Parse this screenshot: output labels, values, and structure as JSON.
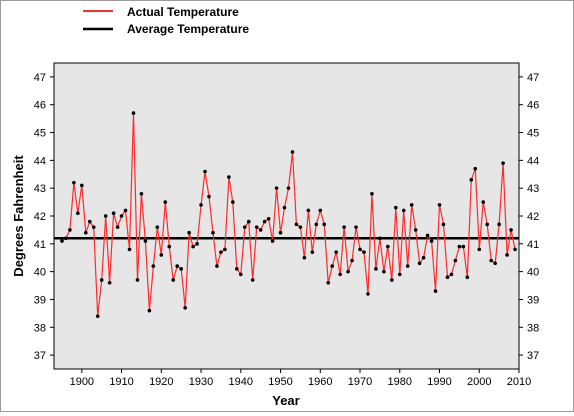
{
  "chart_data": {
    "type": "line",
    "title": "",
    "xlabel": "Year",
    "ylabel": "Degrees Fahrenheit",
    "xlim": [
      1893,
      2010
    ],
    "ylim": [
      36.5,
      47.5
    ],
    "x_ticks": [
      1900,
      1910,
      1920,
      1930,
      1940,
      1950,
      1960,
      1970,
      1980,
      1990,
      2000,
      2010
    ],
    "y_ticks": [
      37,
      38,
      39,
      40,
      41,
      42,
      43,
      44,
      45,
      46,
      47
    ],
    "grid": false,
    "legend_position": "top-left, above plot",
    "background": "#e6e6e6",
    "series": [
      {
        "name": "Actual Temperature",
        "color": "#ff2a2a",
        "marker_color": "#000000",
        "x": [
          1895,
          1896,
          1897,
          1898,
          1899,
          1900,
          1901,
          1902,
          1903,
          1904,
          1905,
          1906,
          1907,
          1908,
          1909,
          1910,
          1911,
          1912,
          1913,
          1914,
          1915,
          1916,
          1917,
          1918,
          1919,
          1920,
          1921,
          1922,
          1923,
          1924,
          1925,
          1926,
          1927,
          1928,
          1929,
          1930,
          1931,
          1932,
          1933,
          1934,
          1935,
          1936,
          1937,
          1938,
          1939,
          1940,
          1941,
          1942,
          1943,
          1944,
          1945,
          1946,
          1947,
          1948,
          1949,
          1950,
          1951,
          1952,
          1953,
          1954,
          1955,
          1956,
          1957,
          1958,
          1959,
          1960,
          1961,
          1962,
          1963,
          1964,
          1965,
          1966,
          1967,
          1968,
          1969,
          1970,
          1971,
          1972,
          1973,
          1974,
          1975,
          1976,
          1977,
          1978,
          1979,
          1980,
          1981,
          1982,
          1983,
          1984,
          1985,
          1986,
          1987,
          1988,
          1989,
          1990,
          1991,
          1992,
          1993,
          1994,
          1995,
          1996,
          1997,
          1998,
          1999,
          2000,
          2001,
          2002,
          2003,
          2004,
          2005,
          2006,
          2007,
          2008,
          2009
        ],
        "values": [
          41.1,
          41.2,
          41.5,
          43.2,
          42.1,
          43.1,
          41.4,
          41.8,
          41.6,
          38.4,
          39.7,
          42.0,
          39.6,
          42.1,
          41.6,
          42.0,
          42.2,
          40.8,
          45.7,
          39.7,
          42.8,
          41.1,
          38.6,
          40.2,
          41.6,
          40.6,
          42.5,
          40.9,
          39.7,
          40.2,
          40.1,
          38.7,
          41.4,
          40.9,
          41.0,
          42.4,
          43.6,
          42.7,
          41.4,
          40.2,
          40.7,
          40.8,
          43.4,
          42.5,
          40.1,
          39.9,
          41.6,
          41.8,
          39.7,
          41.6,
          41.5,
          41.8,
          41.9,
          41.1,
          43.0,
          41.4,
          42.3,
          43.0,
          44.3,
          41.7,
          41.6,
          40.5,
          42.2,
          40.7,
          41.7,
          42.2,
          41.7,
          39.6,
          40.2,
          40.7,
          39.9,
          41.6,
          40.0,
          40.4,
          41.6,
          40.8,
          40.7,
          39.2,
          42.8,
          40.1,
          41.2,
          40.0,
          40.9,
          39.7,
          42.3,
          39.9,
          42.2,
          40.2,
          42.4,
          41.5,
          40.3,
          40.5,
          41.3,
          41.1,
          39.3,
          42.4,
          41.7,
          39.8,
          39.9,
          40.4,
          40.9,
          40.9,
          39.8,
          43.3,
          43.7,
          40.8,
          42.5,
          41.7,
          40.4,
          40.3,
          41.7,
          43.9,
          40.6,
          41.5,
          40.8
        ]
      },
      {
        "name": "Average Temperature",
        "color": "#000000",
        "x": [
          1893,
          2010
        ],
        "values": [
          41.2,
          41.2
        ]
      }
    ]
  }
}
